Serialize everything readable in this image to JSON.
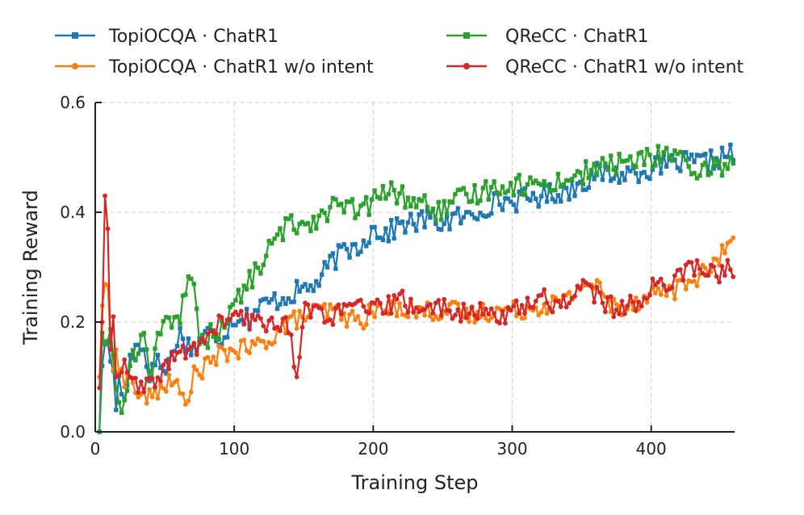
{
  "chart_data": {
    "type": "line",
    "title": "",
    "xlabel": "Training Step",
    "ylabel": "Training Reward",
    "xlim": [
      0,
      460
    ],
    "ylim": [
      0,
      0.6
    ],
    "xticks": [
      0,
      100,
      200,
      300,
      400
    ],
    "yticks": [
      0.0,
      0.2,
      0.4,
      0.6
    ],
    "xtick_labels": [
      "0",
      "100",
      "200",
      "300",
      "400"
    ],
    "ytick_labels": [
      "0.0",
      "0.2",
      "0.4",
      "0.6"
    ],
    "grid": true,
    "legend_position": "top",
    "series": [
      {
        "name": "TopiOCQA · ChatR1",
        "color": "#1f77b4",
        "marker": "square",
        "anchors": [
          [
            3,
            0.0
          ],
          [
            5,
            0.12
          ],
          [
            8,
            0.2
          ],
          [
            10,
            0.1
          ],
          [
            12,
            0.16
          ],
          [
            15,
            0.04
          ],
          [
            18,
            0.12
          ],
          [
            20,
            0.03
          ],
          [
            25,
            0.14
          ],
          [
            30,
            0.16
          ],
          [
            35,
            0.15
          ],
          [
            40,
            0.1
          ],
          [
            45,
            0.14
          ],
          [
            50,
            0.1
          ],
          [
            55,
            0.14
          ],
          [
            60,
            0.18
          ],
          [
            70,
            0.15
          ],
          [
            80,
            0.18
          ],
          [
            90,
            0.17
          ],
          [
            100,
            0.21
          ],
          [
            110,
            0.21
          ],
          [
            120,
            0.23
          ],
          [
            130,
            0.24
          ],
          [
            140,
            0.25
          ],
          [
            150,
            0.26
          ],
          [
            160,
            0.27
          ],
          [
            170,
            0.31
          ],
          [
            180,
            0.33
          ],
          [
            190,
            0.34
          ],
          [
            200,
            0.37
          ],
          [
            210,
            0.36
          ],
          [
            220,
            0.38
          ],
          [
            230,
            0.38
          ],
          [
            240,
            0.39
          ],
          [
            250,
            0.38
          ],
          [
            260,
            0.39
          ],
          [
            270,
            0.39
          ],
          [
            280,
            0.41
          ],
          [
            290,
            0.42
          ],
          [
            300,
            0.42
          ],
          [
            320,
            0.43
          ],
          [
            340,
            0.44
          ],
          [
            360,
            0.47
          ],
          [
            380,
            0.47
          ],
          [
            400,
            0.48
          ],
          [
            420,
            0.49
          ],
          [
            440,
            0.49
          ],
          [
            460,
            0.51
          ]
        ],
        "noise": 0.02
      },
      {
        "name": "TopiOCQA · ChatR1 w/o intent",
        "color": "#ff7f0e",
        "marker": "circle",
        "anchors": [
          [
            3,
            0.1
          ],
          [
            5,
            0.23
          ],
          [
            8,
            0.3
          ],
          [
            10,
            0.2
          ],
          [
            12,
            0.12
          ],
          [
            15,
            0.15
          ],
          [
            20,
            0.09
          ],
          [
            25,
            0.1
          ],
          [
            30,
            0.07
          ],
          [
            40,
            0.06
          ],
          [
            50,
            0.09
          ],
          [
            60,
            0.08
          ],
          [
            65,
            0.05
          ],
          [
            70,
            0.1
          ],
          [
            80,
            0.12
          ],
          [
            90,
            0.14
          ],
          [
            100,
            0.15
          ],
          [
            110,
            0.15
          ],
          [
            120,
            0.16
          ],
          [
            130,
            0.18
          ],
          [
            140,
            0.2
          ],
          [
            150,
            0.21
          ],
          [
            160,
            0.22
          ],
          [
            170,
            0.22
          ],
          [
            180,
            0.21
          ],
          [
            190,
            0.2
          ],
          [
            200,
            0.22
          ],
          [
            210,
            0.22
          ],
          [
            220,
            0.23
          ],
          [
            230,
            0.22
          ],
          [
            240,
            0.22
          ],
          [
            250,
            0.22
          ],
          [
            260,
            0.22
          ],
          [
            270,
            0.21
          ],
          [
            280,
            0.22
          ],
          [
            290,
            0.22
          ],
          [
            300,
            0.22
          ],
          [
            320,
            0.23
          ],
          [
            340,
            0.24
          ],
          [
            350,
            0.27
          ],
          [
            360,
            0.27
          ],
          [
            370,
            0.23
          ],
          [
            380,
            0.23
          ],
          [
            390,
            0.24
          ],
          [
            400,
            0.25
          ],
          [
            410,
            0.26
          ],
          [
            420,
            0.26
          ],
          [
            430,
            0.28
          ],
          [
            440,
            0.29
          ],
          [
            450,
            0.32
          ],
          [
            460,
            0.36
          ]
        ],
        "noise": 0.018
      },
      {
        "name": "QReCC · ChatR1",
        "color": "#2ca02c",
        "marker": "square",
        "anchors": [
          [
            3,
            0.0
          ],
          [
            5,
            0.18
          ],
          [
            8,
            0.16
          ],
          [
            10,
            0.2
          ],
          [
            15,
            0.08
          ],
          [
            20,
            0.03
          ],
          [
            25,
            0.12
          ],
          [
            30,
            0.15
          ],
          [
            35,
            0.18
          ],
          [
            40,
            0.1
          ],
          [
            45,
            0.18
          ],
          [
            50,
            0.2
          ],
          [
            55,
            0.19
          ],
          [
            60,
            0.2
          ],
          [
            65,
            0.25
          ],
          [
            70,
            0.31
          ],
          [
            75,
            0.16
          ],
          [
            80,
            0.17
          ],
          [
            90,
            0.19
          ],
          [
            100,
            0.23
          ],
          [
            110,
            0.27
          ],
          [
            120,
            0.31
          ],
          [
            130,
            0.35
          ],
          [
            140,
            0.38
          ],
          [
            150,
            0.38
          ],
          [
            160,
            0.39
          ],
          [
            170,
            0.41
          ],
          [
            180,
            0.41
          ],
          [
            190,
            0.4
          ],
          [
            200,
            0.42
          ],
          [
            210,
            0.44
          ],
          [
            220,
            0.43
          ],
          [
            230,
            0.42
          ],
          [
            240,
            0.41
          ],
          [
            250,
            0.4
          ],
          [
            260,
            0.42
          ],
          [
            270,
            0.43
          ],
          [
            280,
            0.44
          ],
          [
            290,
            0.45
          ],
          [
            300,
            0.45
          ],
          [
            320,
            0.45
          ],
          [
            340,
            0.46
          ],
          [
            360,
            0.48
          ],
          [
            380,
            0.49
          ],
          [
            400,
            0.5
          ],
          [
            420,
            0.51
          ],
          [
            430,
            0.45
          ],
          [
            440,
            0.48
          ],
          [
            460,
            0.49
          ]
        ],
        "noise": 0.02
      },
      {
        "name": "QReCC · ChatR1 w/o intent",
        "color": "#d62728",
        "marker": "circle",
        "anchors": [
          [
            3,
            0.08
          ],
          [
            5,
            0.2
          ],
          [
            7,
            0.43
          ],
          [
            9,
            0.37
          ],
          [
            11,
            0.15
          ],
          [
            13,
            0.21
          ],
          [
            15,
            0.1
          ],
          [
            20,
            0.12
          ],
          [
            25,
            0.1
          ],
          [
            30,
            0.08
          ],
          [
            40,
            0.08
          ],
          [
            50,
            0.12
          ],
          [
            60,
            0.14
          ],
          [
            70,
            0.15
          ],
          [
            80,
            0.17
          ],
          [
            90,
            0.2
          ],
          [
            100,
            0.21
          ],
          [
            110,
            0.2
          ],
          [
            120,
            0.2
          ],
          [
            130,
            0.2
          ],
          [
            140,
            0.19
          ],
          [
            145,
            0.1
          ],
          [
            150,
            0.22
          ],
          [
            160,
            0.22
          ],
          [
            170,
            0.21
          ],
          [
            180,
            0.22
          ],
          [
            190,
            0.23
          ],
          [
            200,
            0.22
          ],
          [
            210,
            0.23
          ],
          [
            220,
            0.24
          ],
          [
            230,
            0.23
          ],
          [
            240,
            0.22
          ],
          [
            250,
            0.23
          ],
          [
            260,
            0.22
          ],
          [
            270,
            0.21
          ],
          [
            280,
            0.22
          ],
          [
            290,
            0.21
          ],
          [
            300,
            0.22
          ],
          [
            310,
            0.23
          ],
          [
            320,
            0.25
          ],
          [
            330,
            0.23
          ],
          [
            340,
            0.24
          ],
          [
            350,
            0.27
          ],
          [
            360,
            0.25
          ],
          [
            370,
            0.23
          ],
          [
            380,
            0.22
          ],
          [
            390,
            0.24
          ],
          [
            400,
            0.26
          ],
          [
            410,
            0.27
          ],
          [
            420,
            0.29
          ],
          [
            430,
            0.3
          ],
          [
            440,
            0.29
          ],
          [
            450,
            0.29
          ],
          [
            460,
            0.3
          ]
        ],
        "noise": 0.018
      }
    ]
  }
}
